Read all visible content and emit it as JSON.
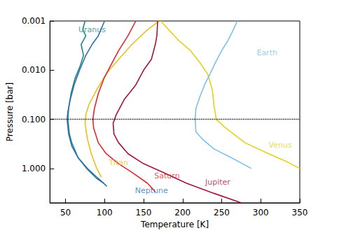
{
  "chart_data": {
    "type": "line",
    "x_label": "Temperature [K]",
    "y_label": "Pressure [bar]",
    "xlim": [
      30,
      350
    ],
    "xticks": [
      50,
      100,
      150,
      200,
      250,
      300,
      350
    ],
    "ylim": [
      0.001,
      5
    ],
    "yticks": [
      {
        "value": 0.001,
        "label": "0.001"
      },
      {
        "value": 0.01,
        "label": "0.010"
      },
      {
        "value": 0.1,
        "label": "0.100"
      },
      {
        "value": 1,
        "label": "1.000"
      }
    ],
    "log": "y",
    "grid": false,
    "hlines": [
      0.1
    ],
    "series": [
      {
        "name": "Uranus",
        "color": "#1f8585",
        "x": [
          75,
          72,
          76,
          70,
          73,
          69,
          62,
          57,
          54,
          53,
          55,
          58,
          66,
          77,
          90,
          99
        ],
        "values": [
          0.001,
          0.0015,
          0.002,
          0.003,
          0.005,
          0.008,
          0.015,
          0.03,
          0.06,
          0.1,
          0.2,
          0.3,
          0.6,
          1.0,
          1.6,
          2.0
        ],
        "label_at": [
          84,
          0.0015
        ]
      },
      {
        "name": "Neptune",
        "color": "#2f6fb4",
        "x": [
          100,
          92,
          84,
          76,
          68,
          61,
          56,
          53,
          52,
          54,
          58,
          66,
          78,
          92,
          103
        ],
        "values": [
          0.001,
          0.002,
          0.003,
          0.005,
          0.01,
          0.02,
          0.04,
          0.07,
          0.1,
          0.2,
          0.35,
          0.6,
          1.0,
          1.6,
          2.3
        ],
        "label_at": [
          160,
          2.8
        ]
      },
      {
        "name": "Titan",
        "color": "#e8c21c",
        "x": [
          170,
          155,
          135,
          118,
          102,
          90,
          80,
          76,
          75,
          78,
          83,
          90,
          96
        ],
        "values": [
          0.001,
          0.0015,
          0.003,
          0.006,
          0.012,
          0.025,
          0.05,
          0.08,
          0.12,
          0.25,
          0.5,
          1.0,
          1.5
        ],
        "label_at": [
          118,
          0.75
        ]
      },
      {
        "name": "Saturn",
        "color": "#e0282e",
        "x": [
          140,
          130,
          118,
          108,
          99,
          92,
          87,
          85,
          86,
          92,
          102,
          118,
          135,
          155,
          165
        ],
        "values": [
          0.001,
          0.002,
          0.004,
          0.008,
          0.015,
          0.03,
          0.06,
          0.1,
          0.15,
          0.3,
          0.5,
          0.8,
          1.2,
          2.0,
          3.0
        ],
        "label_at": [
          180,
          1.4
        ]
      },
      {
        "name": "Jupiter",
        "color": "#a3163c",
        "x": [
          168,
          167,
          165,
          160,
          150,
          140,
          125,
          115,
          111,
          112,
          118,
          130,
          150,
          175,
          205,
          240,
          275
        ],
        "values": [
          0.001,
          0.002,
          0.003,
          0.006,
          0.01,
          0.02,
          0.04,
          0.08,
          0.12,
          0.2,
          0.3,
          0.5,
          0.8,
          1.2,
          2.0,
          3.2,
          5.0
        ],
        "label_at": [
          245,
          1.9
        ]
      },
      {
        "name": "Venus",
        "color": "#e3d21a",
        "x": [
          172,
          182,
          195,
          210,
          222,
          232,
          238,
          240,
          243,
          255,
          280,
          310,
          335,
          350
        ],
        "values": [
          0.001,
          0.0015,
          0.0025,
          0.004,
          0.007,
          0.012,
          0.025,
          0.05,
          0.1,
          0.15,
          0.3,
          0.5,
          0.75,
          1.0
        ],
        "label_at": [
          325,
          0.34
        ]
      },
      {
        "name": "Earth",
        "color": "#7fc0e6",
        "x": [
          270,
          265,
          258,
          250,
          242,
          235,
          228,
          222,
          217,
          216,
          217,
          225,
          240,
          262,
          288
        ],
        "values": [
          0.001,
          0.0015,
          0.0025,
          0.004,
          0.007,
          0.012,
          0.02,
          0.035,
          0.06,
          0.1,
          0.18,
          0.25,
          0.4,
          0.6,
          1.0
        ],
        "label_at": [
          308,
          0.0045
        ]
      }
    ]
  }
}
